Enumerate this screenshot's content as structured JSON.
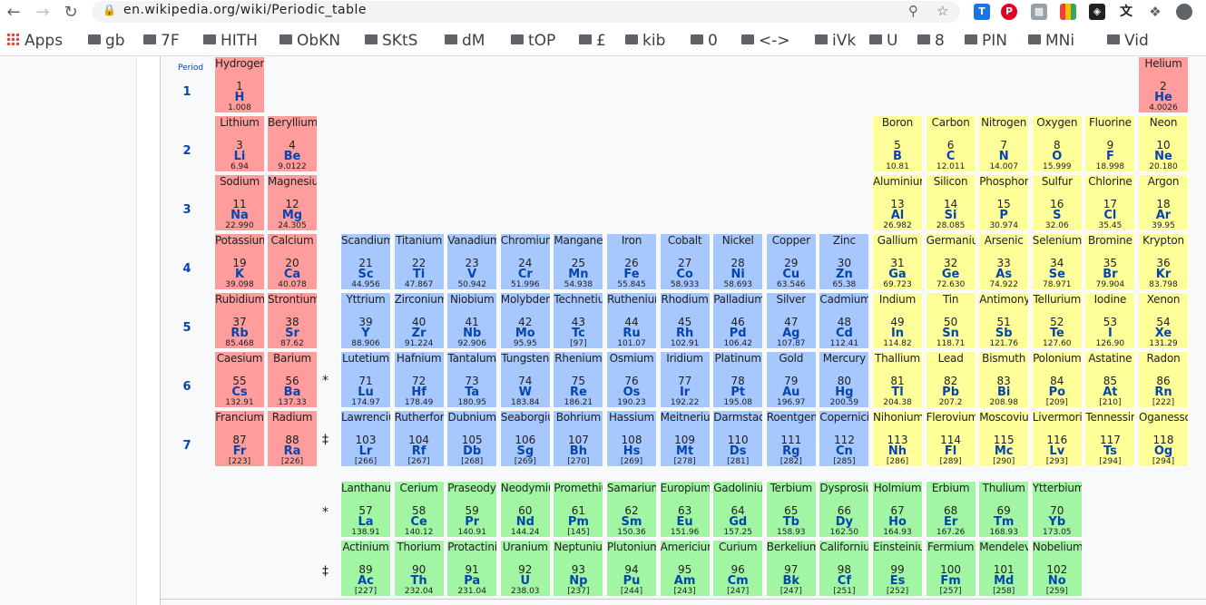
{
  "browser": {
    "url": "en.wikipedia.org/wiki/Periodic_table",
    "colors": {
      "toolbar_bg": "#ffffff",
      "omnibox_bg": "#f1f3f4"
    }
  },
  "bookmarks": [
    "Apps",
    "gb",
    "7F",
    "HITH",
    "ObKN",
    "SKtS",
    "dM",
    "tOP",
    "£",
    "kib",
    "0",
    "<->",
    "iVk",
    "U",
    "8",
    "PIN",
    "MNi",
    "Vid"
  ],
  "table": {
    "period_header": "Period",
    "periods": [
      "1",
      "2",
      "3",
      "4",
      "5",
      "6",
      "7"
    ],
    "markers": {
      "lanthanide": "*",
      "actinide": "‡"
    },
    "colors": {
      "s_block": "#ff9d9d",
      "d_block": "#a7c7ff",
      "p_block": "#ffff99",
      "f_block": "#a2f5a2",
      "symbol": "#0645ad"
    },
    "elements": [
      {
        "n": "Hydrogen",
        "z": "1",
        "s": "H",
        "m": "1.008",
        "r": 1,
        "c": 1,
        "b": "s"
      },
      {
        "n": "Helium",
        "z": "2",
        "s": "He",
        "m": "4.0026",
        "r": 1,
        "c": 18,
        "b": "s"
      },
      {
        "n": "Lithium",
        "z": "3",
        "s": "Li",
        "m": "6.94",
        "r": 2,
        "c": 1,
        "b": "s"
      },
      {
        "n": "Beryllium",
        "z": "4",
        "s": "Be",
        "m": "9.0122",
        "r": 2,
        "c": 2,
        "b": "s"
      },
      {
        "n": "Boron",
        "z": "5",
        "s": "B",
        "m": "10.81",
        "r": 2,
        "c": 13,
        "b": "p"
      },
      {
        "n": "Carbon",
        "z": "6",
        "s": "C",
        "m": "12.011",
        "r": 2,
        "c": 14,
        "b": "p"
      },
      {
        "n": "Nitrogen",
        "z": "7",
        "s": "N",
        "m": "14.007",
        "r": 2,
        "c": 15,
        "b": "p"
      },
      {
        "n": "Oxygen",
        "z": "8",
        "s": "O",
        "m": "15.999",
        "r": 2,
        "c": 16,
        "b": "p"
      },
      {
        "n": "Fluorine",
        "z": "9",
        "s": "F",
        "m": "18.998",
        "r": 2,
        "c": 17,
        "b": "p"
      },
      {
        "n": "Neon",
        "z": "10",
        "s": "Ne",
        "m": "20.180",
        "r": 2,
        "c": 18,
        "b": "p"
      },
      {
        "n": "Sodium",
        "z": "11",
        "s": "Na",
        "m": "22.990",
        "r": 3,
        "c": 1,
        "b": "s"
      },
      {
        "n": "Magnesium",
        "z": "12",
        "s": "Mg",
        "m": "24.305",
        "r": 3,
        "c": 2,
        "b": "s"
      },
      {
        "n": "Aluminium",
        "z": "13",
        "s": "Al",
        "m": "26.982",
        "r": 3,
        "c": 13,
        "b": "p"
      },
      {
        "n": "Silicon",
        "z": "14",
        "s": "Si",
        "m": "28.085",
        "r": 3,
        "c": 14,
        "b": "p"
      },
      {
        "n": "Phosphorus",
        "z": "15",
        "s": "P",
        "m": "30.974",
        "r": 3,
        "c": 15,
        "b": "p"
      },
      {
        "n": "Sulfur",
        "z": "16",
        "s": "S",
        "m": "32.06",
        "r": 3,
        "c": 16,
        "b": "p"
      },
      {
        "n": "Chlorine",
        "z": "17",
        "s": "Cl",
        "m": "35.45",
        "r": 3,
        "c": 17,
        "b": "p"
      },
      {
        "n": "Argon",
        "z": "18",
        "s": "Ar",
        "m": "39.95",
        "r": 3,
        "c": 18,
        "b": "p"
      },
      {
        "n": "Potassium",
        "z": "19",
        "s": "K",
        "m": "39.098",
        "r": 4,
        "c": 1,
        "b": "s"
      },
      {
        "n": "Calcium",
        "z": "20",
        "s": "Ca",
        "m": "40.078",
        "r": 4,
        "c": 2,
        "b": "s"
      },
      {
        "n": "Scandium",
        "z": "21",
        "s": "Sc",
        "m": "44.956",
        "r": 4,
        "c": 3,
        "b": "d"
      },
      {
        "n": "Titanium",
        "z": "22",
        "s": "Ti",
        "m": "47.867",
        "r": 4,
        "c": 4,
        "b": "d"
      },
      {
        "n": "Vanadium",
        "z": "23",
        "s": "V",
        "m": "50.942",
        "r": 4,
        "c": 5,
        "b": "d"
      },
      {
        "n": "Chromium",
        "z": "24",
        "s": "Cr",
        "m": "51.996",
        "r": 4,
        "c": 6,
        "b": "d"
      },
      {
        "n": "Manganese",
        "z": "25",
        "s": "Mn",
        "m": "54.938",
        "r": 4,
        "c": 7,
        "b": "d"
      },
      {
        "n": "Iron",
        "z": "26",
        "s": "Fe",
        "m": "55.845",
        "r": 4,
        "c": 8,
        "b": "d"
      },
      {
        "n": "Cobalt",
        "z": "27",
        "s": "Co",
        "m": "58.933",
        "r": 4,
        "c": 9,
        "b": "d"
      },
      {
        "n": "Nickel",
        "z": "28",
        "s": "Ni",
        "m": "58.693",
        "r": 4,
        "c": 10,
        "b": "d"
      },
      {
        "n": "Copper",
        "z": "29",
        "s": "Cu",
        "m": "63.546",
        "r": 4,
        "c": 11,
        "b": "d"
      },
      {
        "n": "Zinc",
        "z": "30",
        "s": "Zn",
        "m": "65.38",
        "r": 4,
        "c": 12,
        "b": "d"
      },
      {
        "n": "Gallium",
        "z": "31",
        "s": "Ga",
        "m": "69.723",
        "r": 4,
        "c": 13,
        "b": "p"
      },
      {
        "n": "Germanium",
        "z": "32",
        "s": "Ge",
        "m": "72.630",
        "r": 4,
        "c": 14,
        "b": "p"
      },
      {
        "n": "Arsenic",
        "z": "33",
        "s": "As",
        "m": "74.922",
        "r": 4,
        "c": 15,
        "b": "p"
      },
      {
        "n": "Selenium",
        "z": "34",
        "s": "Se",
        "m": "78.971",
        "r": 4,
        "c": 16,
        "b": "p"
      },
      {
        "n": "Bromine",
        "z": "35",
        "s": "Br",
        "m": "79.904",
        "r": 4,
        "c": 17,
        "b": "p"
      },
      {
        "n": "Krypton",
        "z": "36",
        "s": "Kr",
        "m": "83.798",
        "r": 4,
        "c": 18,
        "b": "p"
      },
      {
        "n": "Rubidium",
        "z": "37",
        "s": "Rb",
        "m": "85.468",
        "r": 5,
        "c": 1,
        "b": "s"
      },
      {
        "n": "Strontium",
        "z": "38",
        "s": "Sr",
        "m": "87.62",
        "r": 5,
        "c": 2,
        "b": "s"
      },
      {
        "n": "Yttrium",
        "z": "39",
        "s": "Y",
        "m": "88.906",
        "r": 5,
        "c": 3,
        "b": "d"
      },
      {
        "n": "Zirconium",
        "z": "40",
        "s": "Zr",
        "m": "91.224",
        "r": 5,
        "c": 4,
        "b": "d"
      },
      {
        "n": "Niobium",
        "z": "41",
        "s": "Nb",
        "m": "92.906",
        "r": 5,
        "c": 5,
        "b": "d"
      },
      {
        "n": "Molybdenum",
        "z": "42",
        "s": "Mo",
        "m": "95.95",
        "r": 5,
        "c": 6,
        "b": "d"
      },
      {
        "n": "Technetium",
        "z": "43",
        "s": "Tc",
        "m": "[97]",
        "r": 5,
        "c": 7,
        "b": "d"
      },
      {
        "n": "Ruthenium",
        "z": "44",
        "s": "Ru",
        "m": "101.07",
        "r": 5,
        "c": 8,
        "b": "d"
      },
      {
        "n": "Rhodium",
        "z": "45",
        "s": "Rh",
        "m": "102.91",
        "r": 5,
        "c": 9,
        "b": "d"
      },
      {
        "n": "Palladium",
        "z": "46",
        "s": "Pd",
        "m": "106.42",
        "r": 5,
        "c": 10,
        "b": "d"
      },
      {
        "n": "Silver",
        "z": "47",
        "s": "Ag",
        "m": "107.87",
        "r": 5,
        "c": 11,
        "b": "d"
      },
      {
        "n": "Cadmium",
        "z": "48",
        "s": "Cd",
        "m": "112.41",
        "r": 5,
        "c": 12,
        "b": "d"
      },
      {
        "n": "Indium",
        "z": "49",
        "s": "In",
        "m": "114.82",
        "r": 5,
        "c": 13,
        "b": "p"
      },
      {
        "n": "Tin",
        "z": "50",
        "s": "Sn",
        "m": "118.71",
        "r": 5,
        "c": 14,
        "b": "p"
      },
      {
        "n": "Antimony",
        "z": "51",
        "s": "Sb",
        "m": "121.76",
        "r": 5,
        "c": 15,
        "b": "p"
      },
      {
        "n": "Tellurium",
        "z": "52",
        "s": "Te",
        "m": "127.60",
        "r": 5,
        "c": 16,
        "b": "p"
      },
      {
        "n": "Iodine",
        "z": "53",
        "s": "I",
        "m": "126.90",
        "r": 5,
        "c": 17,
        "b": "p"
      },
      {
        "n": "Xenon",
        "z": "54",
        "s": "Xe",
        "m": "131.29",
        "r": 5,
        "c": 18,
        "b": "p"
      },
      {
        "n": "Caesium",
        "z": "55",
        "s": "Cs",
        "m": "132.91",
        "r": 6,
        "c": 1,
        "b": "s"
      },
      {
        "n": "Barium",
        "z": "56",
        "s": "Ba",
        "m": "137.33",
        "r": 6,
        "c": 2,
        "b": "s"
      },
      {
        "n": "Lutetium",
        "z": "71",
        "s": "Lu",
        "m": "174.97",
        "r": 6,
        "c": 3,
        "b": "d"
      },
      {
        "n": "Hafnium",
        "z": "72",
        "s": "Hf",
        "m": "178.49",
        "r": 6,
        "c": 4,
        "b": "d"
      },
      {
        "n": "Tantalum",
        "z": "73",
        "s": "Ta",
        "m": "180.95",
        "r": 6,
        "c": 5,
        "b": "d"
      },
      {
        "n": "Tungsten",
        "z": "74",
        "s": "W",
        "m": "183.84",
        "r": 6,
        "c": 6,
        "b": "d"
      },
      {
        "n": "Rhenium",
        "z": "75",
        "s": "Re",
        "m": "186.21",
        "r": 6,
        "c": 7,
        "b": "d"
      },
      {
        "n": "Osmium",
        "z": "76",
        "s": "Os",
        "m": "190.23",
        "r": 6,
        "c": 8,
        "b": "d"
      },
      {
        "n": "Iridium",
        "z": "77",
        "s": "Ir",
        "m": "192.22",
        "r": 6,
        "c": 9,
        "b": "d"
      },
      {
        "n": "Platinum",
        "z": "78",
        "s": "Pt",
        "m": "195.08",
        "r": 6,
        "c": 10,
        "b": "d"
      },
      {
        "n": "Gold",
        "z": "79",
        "s": "Au",
        "m": "196.97",
        "r": 6,
        "c": 11,
        "b": "d"
      },
      {
        "n": "Mercury",
        "z": "80",
        "s": "Hg",
        "m": "200.59",
        "r": 6,
        "c": 12,
        "b": "d"
      },
      {
        "n": "Thallium",
        "z": "81",
        "s": "Tl",
        "m": "204.38",
        "r": 6,
        "c": 13,
        "b": "p"
      },
      {
        "n": "Lead",
        "z": "82",
        "s": "Pb",
        "m": "207.2",
        "r": 6,
        "c": 14,
        "b": "p"
      },
      {
        "n": "Bismuth",
        "z": "83",
        "s": "Bi",
        "m": "208.98",
        "r": 6,
        "c": 15,
        "b": "p"
      },
      {
        "n": "Polonium",
        "z": "84",
        "s": "Po",
        "m": "[209]",
        "r": 6,
        "c": 16,
        "b": "p"
      },
      {
        "n": "Astatine",
        "z": "85",
        "s": "At",
        "m": "[210]",
        "r": 6,
        "c": 17,
        "b": "p"
      },
      {
        "n": "Radon",
        "z": "86",
        "s": "Rn",
        "m": "[222]",
        "r": 6,
        "c": 18,
        "b": "p"
      },
      {
        "n": "Francium",
        "z": "87",
        "s": "Fr",
        "m": "[223]",
        "r": 7,
        "c": 1,
        "b": "s"
      },
      {
        "n": "Radium",
        "z": "88",
        "s": "Ra",
        "m": "[226]",
        "r": 7,
        "c": 2,
        "b": "s"
      },
      {
        "n": "Lawrencium",
        "z": "103",
        "s": "Lr",
        "m": "[266]",
        "r": 7,
        "c": 3,
        "b": "d"
      },
      {
        "n": "Rutherfordium",
        "z": "104",
        "s": "Rf",
        "m": "[267]",
        "r": 7,
        "c": 4,
        "b": "d"
      },
      {
        "n": "Dubnium",
        "z": "105",
        "s": "Db",
        "m": "[268]",
        "r": 7,
        "c": 5,
        "b": "d"
      },
      {
        "n": "Seaborgium",
        "z": "106",
        "s": "Sg",
        "m": "[269]",
        "r": 7,
        "c": 6,
        "b": "d"
      },
      {
        "n": "Bohrium",
        "z": "107",
        "s": "Bh",
        "m": "[270]",
        "r": 7,
        "c": 7,
        "b": "d"
      },
      {
        "n": "Hassium",
        "z": "108",
        "s": "Hs",
        "m": "[269]",
        "r": 7,
        "c": 8,
        "b": "d"
      },
      {
        "n": "Meitnerium",
        "z": "109",
        "s": "Mt",
        "m": "[278]",
        "r": 7,
        "c": 9,
        "b": "d"
      },
      {
        "n": "Darmstadtium",
        "z": "110",
        "s": "Ds",
        "m": "[281]",
        "r": 7,
        "c": 10,
        "b": "d"
      },
      {
        "n": "Roentgenium",
        "z": "111",
        "s": "Rg",
        "m": "[282]",
        "r": 7,
        "c": 11,
        "b": "d"
      },
      {
        "n": "Copernicium",
        "z": "112",
        "s": "Cn",
        "m": "[285]",
        "r": 7,
        "c": 12,
        "b": "d"
      },
      {
        "n": "Nihonium",
        "z": "113",
        "s": "Nh",
        "m": "[286]",
        "r": 7,
        "c": 13,
        "b": "p"
      },
      {
        "n": "Flerovium",
        "z": "114",
        "s": "Fl",
        "m": "[289]",
        "r": 7,
        "c": 14,
        "b": "p"
      },
      {
        "n": "Moscovium",
        "z": "115",
        "s": "Mc",
        "m": "[290]",
        "r": 7,
        "c": 15,
        "b": "p"
      },
      {
        "n": "Livermorium",
        "z": "116",
        "s": "Lv",
        "m": "[293]",
        "r": 7,
        "c": 16,
        "b": "p"
      },
      {
        "n": "Tennessine",
        "z": "117",
        "s": "Ts",
        "m": "[294]",
        "r": 7,
        "c": 17,
        "b": "p"
      },
      {
        "n": "Oganesson",
        "z": "118",
        "s": "Og",
        "m": "[294]",
        "r": 7,
        "c": 18,
        "b": "p"
      },
      {
        "n": "Lanthanum",
        "z": "57",
        "s": "La",
        "m": "138.91",
        "r": 8,
        "c": 3,
        "b": "f"
      },
      {
        "n": "Cerium",
        "z": "58",
        "s": "Ce",
        "m": "140.12",
        "r": 8,
        "c": 4,
        "b": "f"
      },
      {
        "n": "Praseodymium",
        "z": "59",
        "s": "Pr",
        "m": "140.91",
        "r": 8,
        "c": 5,
        "b": "f"
      },
      {
        "n": "Neodymium",
        "z": "60",
        "s": "Nd",
        "m": "144.24",
        "r": 8,
        "c": 6,
        "b": "f"
      },
      {
        "n": "Promethium",
        "z": "61",
        "s": "Pm",
        "m": "[145]",
        "r": 8,
        "c": 7,
        "b": "f"
      },
      {
        "n": "Samarium",
        "z": "62",
        "s": "Sm",
        "m": "150.36",
        "r": 8,
        "c": 8,
        "b": "f"
      },
      {
        "n": "Europium",
        "z": "63",
        "s": "Eu",
        "m": "151.96",
        "r": 8,
        "c": 9,
        "b": "f"
      },
      {
        "n": "Gadolinium",
        "z": "64",
        "s": "Gd",
        "m": "157.25",
        "r": 8,
        "c": 10,
        "b": "f"
      },
      {
        "n": "Terbium",
        "z": "65",
        "s": "Tb",
        "m": "158.93",
        "r": 8,
        "c": 11,
        "b": "f"
      },
      {
        "n": "Dysprosium",
        "z": "66",
        "s": "Dy",
        "m": "162.50",
        "r": 8,
        "c": 12,
        "b": "f"
      },
      {
        "n": "Holmium",
        "z": "67",
        "s": "Ho",
        "m": "164.93",
        "r": 8,
        "c": 13,
        "b": "f"
      },
      {
        "n": "Erbium",
        "z": "68",
        "s": "Er",
        "m": "167.26",
        "r": 8,
        "c": 14,
        "b": "f"
      },
      {
        "n": "Thulium",
        "z": "69",
        "s": "Tm",
        "m": "168.93",
        "r": 8,
        "c": 15,
        "b": "f"
      },
      {
        "n": "Ytterbium",
        "z": "70",
        "s": "Yb",
        "m": "173.05",
        "r": 8,
        "c": 16,
        "b": "f"
      },
      {
        "n": "Actinium",
        "z": "89",
        "s": "Ac",
        "m": "[227]",
        "r": 9,
        "c": 3,
        "b": "f"
      },
      {
        "n": "Thorium",
        "z": "90",
        "s": "Th",
        "m": "232.04",
        "r": 9,
        "c": 4,
        "b": "f"
      },
      {
        "n": "Protactinium",
        "z": "91",
        "s": "Pa",
        "m": "231.04",
        "r": 9,
        "c": 5,
        "b": "f"
      },
      {
        "n": "Uranium",
        "z": "92",
        "s": "U",
        "m": "238.03",
        "r": 9,
        "c": 6,
        "b": "f"
      },
      {
        "n": "Neptunium",
        "z": "93",
        "s": "Np",
        "m": "[237]",
        "r": 9,
        "c": 7,
        "b": "f"
      },
      {
        "n": "Plutonium",
        "z": "94",
        "s": "Pu",
        "m": "[244]",
        "r": 9,
        "c": 8,
        "b": "f"
      },
      {
        "n": "Americium",
        "z": "95",
        "s": "Am",
        "m": "[243]",
        "r": 9,
        "c": 9,
        "b": "f"
      },
      {
        "n": "Curium",
        "z": "96",
        "s": "Cm",
        "m": "[247]",
        "r": 9,
        "c": 10,
        "b": "f"
      },
      {
        "n": "Berkelium",
        "z": "97",
        "s": "Bk",
        "m": "[247]",
        "r": 9,
        "c": 11,
        "b": "f"
      },
      {
        "n": "Californium",
        "z": "98",
        "s": "Cf",
        "m": "[251]",
        "r": 9,
        "c": 12,
        "b": "f"
      },
      {
        "n": "Einsteinium",
        "z": "99",
        "s": "Es",
        "m": "[252]",
        "r": 9,
        "c": 13,
        "b": "f"
      },
      {
        "n": "Fermium",
        "z": "100",
        "s": "Fm",
        "m": "[257]",
        "r": 9,
        "c": 14,
        "b": "f"
      },
      {
        "n": "Mendelevium",
        "z": "101",
        "s": "Md",
        "m": "[258]",
        "r": 9,
        "c": 15,
        "b": "f"
      },
      {
        "n": "Nobelium",
        "z": "102",
        "s": "No",
        "m": "[259]",
        "r": 9,
        "c": 16,
        "b": "f"
      }
    ]
  }
}
